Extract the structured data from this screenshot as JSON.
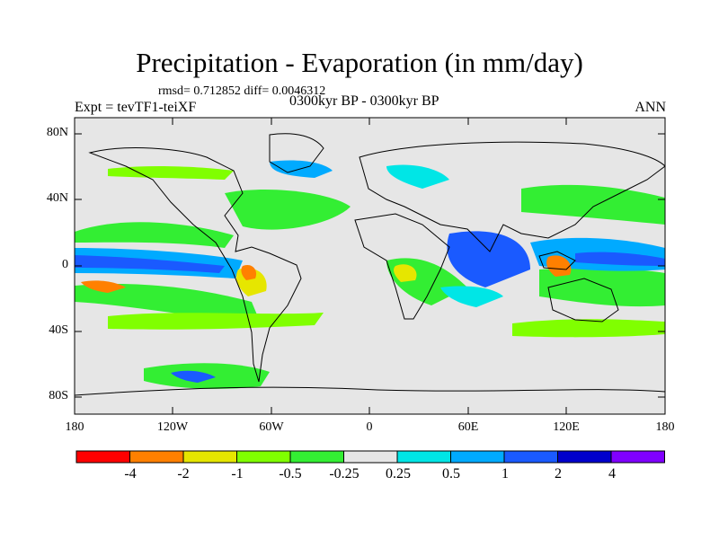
{
  "title": "Precipitation - Evaporation (in mm/day)",
  "subtitle": "rmsd= 0.712852 diff= 0.0046312",
  "experiment": "Expt = tevTF1-teiXF",
  "period": "0300kyr BP - 0300kyr BP",
  "season": "ANN",
  "map": {
    "lat_labels": [
      "80N",
      "40N",
      "0",
      "40S",
      "80S"
    ],
    "lon_labels": [
      "180",
      "120W",
      "60W",
      "0",
      "60E",
      "120E",
      "180"
    ]
  },
  "colorbar": {
    "labels": [
      "-4",
      "-2",
      "-1",
      "-0.5",
      "-0.25",
      "0.25",
      "0.5",
      "1",
      "2",
      "4"
    ],
    "colors": [
      "#ff0000",
      "#ff8000",
      "#e6e600",
      "#80ff00",
      "#33ee33",
      "#e6e6e6",
      "#00e6e6",
      "#00aaff",
      "#1a5aff",
      "#0000cc",
      "#8000ff"
    ]
  }
}
